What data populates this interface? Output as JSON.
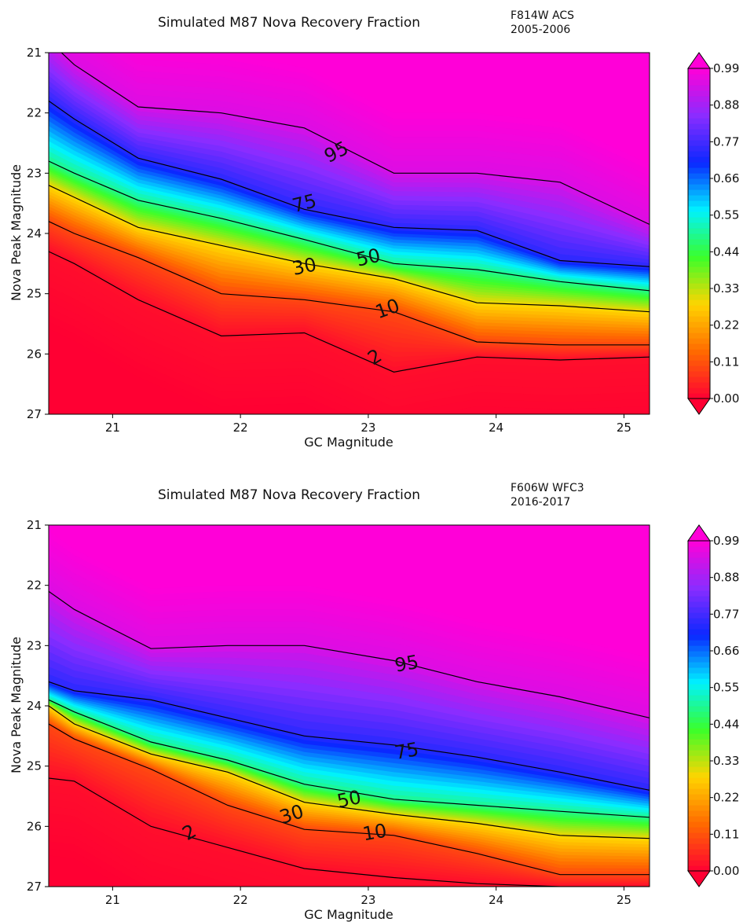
{
  "colors": {
    "colormap": [
      "#ff0033",
      "#ff6a00",
      "#ffd400",
      "#3aff2a",
      "#00f2ff",
      "#0a28ff",
      "#8a2cff",
      "#ff00d8"
    ],
    "contour_line": "#000000"
  },
  "chart_data": [
    {
      "type": "contour",
      "title": "Simulated M87 Nova Recovery Fraction",
      "annotation": [
        "F814W ACS",
        "2005-2006"
      ],
      "xlabel": "GC Magnitude",
      "ylabel": "Nova Peak Magnitude",
      "xlim": [
        20.5,
        25.2
      ],
      "ylim": [
        27,
        21
      ],
      "xticks": [
        "21",
        "22",
        "23",
        "24",
        "25"
      ],
      "yticks": [
        "21",
        "22",
        "23",
        "24",
        "25",
        "26",
        "27"
      ],
      "colorbar": {
        "range": [
          0.0,
          0.99
        ],
        "extend": "both",
        "ticks": [
          "0.00",
          "0.11",
          "0.22",
          "0.33",
          "0.44",
          "0.55",
          "0.66",
          "0.77",
          "0.88",
          "0.99"
        ]
      },
      "contour_x": [
        20.5,
        20.7,
        21.2,
        21.85,
        22.5,
        23.2,
        23.85,
        24.5,
        25.2
      ],
      "contours": [
        {
          "level": 2,
          "label": "2",
          "y": [
            24.3,
            24.5,
            25.1,
            25.7,
            25.65,
            26.3,
            26.05,
            26.1,
            26.05
          ],
          "label_at": [
            23.05,
            26.05
          ],
          "label_angle": -32
        },
        {
          "level": 10,
          "label": "10",
          "y": [
            23.8,
            24.0,
            24.4,
            25.0,
            25.1,
            25.3,
            25.8,
            25.85,
            25.85
          ],
          "label_at": [
            23.15,
            25.25
          ],
          "label_angle": -20
        },
        {
          "level": 30,
          "label": "30",
          "y": [
            23.2,
            23.4,
            23.9,
            24.2,
            24.5,
            24.75,
            25.15,
            25.2,
            25.3
          ],
          "label_at": [
            22.5,
            24.55
          ],
          "label_angle": -12
        },
        {
          "level": 50,
          "label": "50",
          "y": [
            22.8,
            23.0,
            23.45,
            23.75,
            24.1,
            24.5,
            24.6,
            24.8,
            24.95
          ],
          "label_at": [
            23.0,
            24.4
          ],
          "label_angle": -13
        },
        {
          "level": 75,
          "label": "75",
          "y": [
            21.8,
            22.1,
            22.75,
            23.1,
            23.6,
            23.9,
            23.95,
            24.45,
            24.55
          ],
          "label_at": [
            22.5,
            23.5
          ],
          "label_angle": -14
        },
        {
          "level": 95,
          "label": "95",
          "y": [
            20.8,
            21.2,
            21.9,
            22.0,
            22.25,
            23.0,
            23.0,
            23.15,
            23.85
          ],
          "label_at": [
            22.75,
            22.65
          ],
          "label_angle": -27
        }
      ]
    },
    {
      "type": "contour",
      "title": "Simulated M87 Nova Recovery Fraction",
      "annotation": [
        "F606W WFC3",
        "2016-2017"
      ],
      "xlabel": "GC Magnitude",
      "ylabel": "Nova Peak Magnitude",
      "xlim": [
        20.5,
        25.2
      ],
      "ylim": [
        27,
        21
      ],
      "xticks": [
        "21",
        "22",
        "23",
        "24",
        "25"
      ],
      "yticks": [
        "21",
        "22",
        "23",
        "24",
        "25",
        "26",
        "27"
      ],
      "colorbar": {
        "range": [
          0.0,
          0.99
        ],
        "extend": "both",
        "ticks": [
          "0.00",
          "0.11",
          "0.22",
          "0.33",
          "0.44",
          "0.55",
          "0.66",
          "0.77",
          "0.88",
          "0.99"
        ]
      },
      "contour_x": [
        20.5,
        20.7,
        21.3,
        21.9,
        22.5,
        23.2,
        23.85,
        24.5,
        25.2
      ],
      "contours": [
        {
          "level": 2,
          "label": "2",
          "y": [
            25.2,
            25.25,
            26.0,
            26.35,
            26.7,
            26.85,
            26.95,
            27.0,
            27.0
          ],
          "label_at": [
            21.6,
            26.1
          ],
          "label_angle": -30
        },
        {
          "level": 10,
          "label": "10",
          "y": [
            24.3,
            24.55,
            25.05,
            25.65,
            26.05,
            26.15,
            26.45,
            26.8,
            26.8
          ],
          "label_at": [
            23.05,
            26.1
          ],
          "label_angle": -10
        },
        {
          "level": 30,
          "label": "30",
          "y": [
            24.0,
            24.3,
            24.8,
            25.1,
            25.6,
            25.8,
            25.95,
            26.15,
            26.2
          ],
          "label_at": [
            22.4,
            25.8
          ],
          "label_angle": -18
        },
        {
          "level": 50,
          "label": "50",
          "y": [
            23.9,
            24.1,
            24.6,
            24.9,
            25.3,
            25.55,
            25.65,
            25.75,
            25.85
          ],
          "label_at": [
            22.85,
            25.55
          ],
          "label_angle": -12
        },
        {
          "level": 75,
          "label": "75",
          "y": [
            23.6,
            23.75,
            23.9,
            24.2,
            24.5,
            24.65,
            24.85,
            25.1,
            25.4
          ],
          "label_at": [
            23.3,
            24.75
          ],
          "label_angle": -10
        },
        {
          "level": 95,
          "label": "95",
          "y": [
            22.1,
            22.4,
            23.05,
            23.0,
            23.0,
            23.25,
            23.6,
            23.85,
            24.2
          ],
          "label_at": [
            23.3,
            23.3
          ],
          "label_angle": -10
        }
      ]
    }
  ]
}
